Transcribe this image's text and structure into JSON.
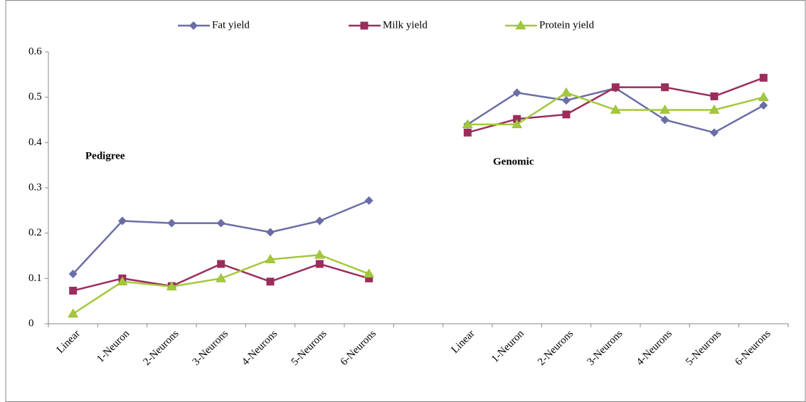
{
  "chart_data": {
    "type": "line",
    "categories": [
      "Linear",
      "1-Neuron",
      "2-Neurons",
      "3-Neurons",
      "4-Neurons",
      "5-Neurons",
      "6-Neurons",
      null,
      "Linear",
      "1-Neuron",
      "2-Neurons",
      "3-Neurons",
      "4-Neurons",
      "5-Neurons",
      "6-Neurons"
    ],
    "series": [
      {
        "name": "Fat yield",
        "color": "#6a6ea6",
        "marker": "diamond",
        "values": [
          0.11,
          0.227,
          0.222,
          0.222,
          0.202,
          0.227,
          0.272,
          null,
          0.44,
          0.51,
          0.493,
          0.52,
          0.45,
          0.422,
          0.482
        ]
      },
      {
        "name": "Milk yield",
        "color": "#9b2d5d",
        "marker": "square",
        "values": [
          0.073,
          0.1,
          0.083,
          0.132,
          0.093,
          0.132,
          0.1,
          null,
          0.422,
          0.452,
          0.462,
          0.522,
          0.522,
          0.502,
          0.543
        ]
      },
      {
        "name": "Protein yield",
        "color": "#a3c93a",
        "marker": "triangle",
        "values": [
          0.022,
          0.093,
          0.082,
          0.1,
          0.142,
          0.152,
          0.11,
          null,
          0.44,
          0.44,
          0.51,
          0.472,
          0.472,
          0.472,
          0.5
        ]
      }
    ],
    "annotations": [
      "Pedigree",
      "Genomic"
    ],
    "ylim": [
      0,
      0.6
    ],
    "yticks": [
      0,
      0.1,
      0.2,
      0.3,
      0.4,
      0.5,
      0.6
    ],
    "grid": false,
    "legend": "top"
  }
}
